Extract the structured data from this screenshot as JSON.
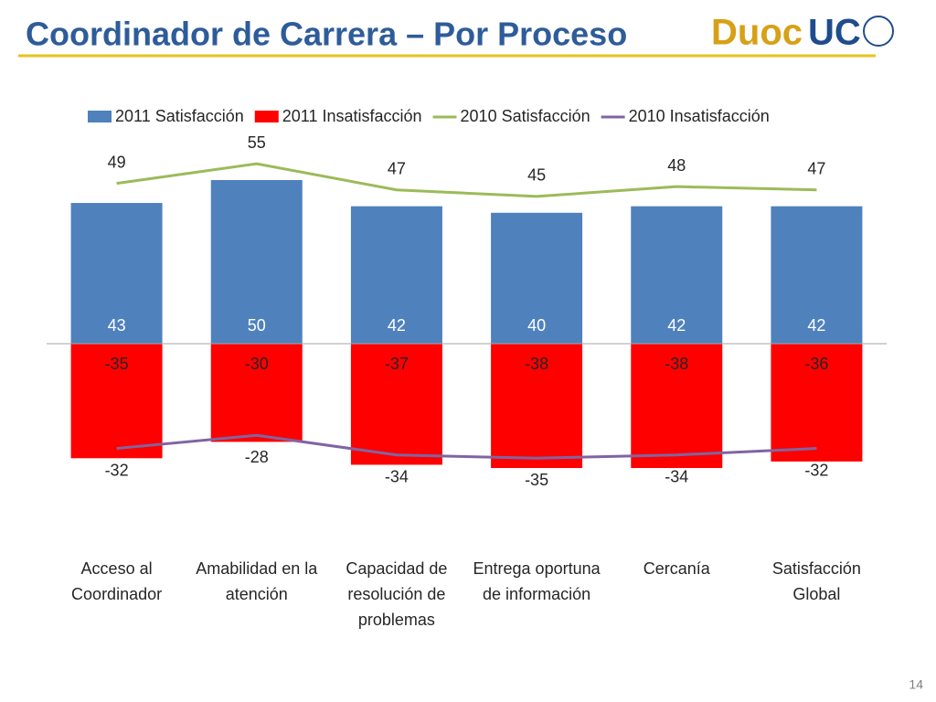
{
  "header": {
    "title": "Coordinador de Carrera – Por Proceso",
    "logo_left": "Duoc",
    "logo_right": "UC"
  },
  "page_number": "14",
  "chart_data": {
    "type": "bar_line",
    "categories": [
      "Acceso al Coordinador",
      "Amabilidad en la atención",
      "Capacidad de resolución de problemas",
      "Entrega oportuna de información",
      "Cercanía",
      "Satisfacción Global"
    ],
    "series": [
      {
        "name": "2011 Satisfacción",
        "color": "#4f81bd",
        "kind": "bar",
        "values": [
          43,
          50,
          42,
          40,
          42,
          42
        ]
      },
      {
        "name": "2011 Insatisfacción",
        "color": "#ff0000",
        "kind": "bar",
        "values": [
          -35,
          -30,
          -37,
          -38,
          -38,
          -36
        ]
      },
      {
        "name": "2010 Satisfacción",
        "color": "#9bbb59",
        "kind": "line",
        "values": [
          49,
          55,
          47,
          45,
          48,
          47
        ]
      },
      {
        "name": "2010 Insatisfacción",
        "color": "#8064a2",
        "kind": "line",
        "values": [
          -32,
          -28,
          -34,
          -35,
          -34,
          -32
        ]
      }
    ],
    "ylim": [
      -60,
      70
    ],
    "legend": "top"
  }
}
